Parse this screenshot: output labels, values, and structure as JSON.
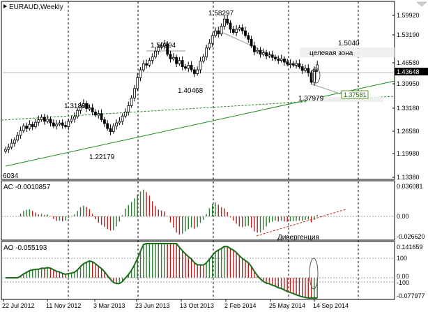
{
  "window": {
    "title": "EURAUD,Weekly"
  },
  "colors": {
    "candle_bull": "#ffffff",
    "candle_bear": "#000000",
    "candle_outline": "#000000",
    "hist_up": "#2e7d32",
    "hist_down": "#b22222",
    "ao_line": "#1a6e1a",
    "trendline": "#1e8a1e",
    "price_marker_bg": "#000000",
    "target_marker_border": "#5a9e2a"
  },
  "main_panel": {
    "price_labels": [
      "1.59920",
      "1.53190",
      "1.46580",
      "1.39950",
      "1.33180",
      "1.26580",
      "1.19980",
      "1.13380"
    ],
    "current_price": "1.43648",
    "target_price": "1.37581",
    "annotations": {
      "high": "1.58297",
      "peak2": "1.50294",
      "low2": "1.40468",
      "peak1": "1.31889",
      "low1": "1.22179",
      "low_last": "1.37979",
      "target": "1.5040",
      "target_zone": "целевая зона",
      "start_low": "6034"
    }
  },
  "ac_panel": {
    "title": "AC -0.0010857",
    "scale_labels": [
      "0.036081",
      "0.00",
      "-0.026620"
    ],
    "divergence_label": "Дивергенция"
  },
  "ao_panel": {
    "title": "AO -0.055193",
    "scale_labels": [
      "0.141659",
      "100",
      "0.00",
      "-100",
      "-0.077977"
    ]
  },
  "time_axis": {
    "labels": [
      "22 Jul 2012",
      "11 Nov 2012",
      "3 Mar 2013",
      "23 Jun 2013",
      "13 Oct 2013",
      "2 Feb 2014",
      "25 May 2014",
      "14 Sep 2014"
    ]
  },
  "chart_data": {
    "type": "candlestick",
    "symbol": "EURAUD",
    "timeframe": "Weekly",
    "ylim": [
      1.1338,
      1.5992
    ],
    "closes": [
      1.165,
      1.172,
      1.185,
      1.195,
      1.21,
      1.225,
      1.24,
      1.232,
      1.245,
      1.238,
      1.252,
      1.26,
      1.268,
      1.255,
      1.262,
      1.25,
      1.24,
      1.246,
      1.25,
      1.242,
      1.238,
      1.255,
      1.262,
      1.27,
      1.29,
      1.305,
      1.312,
      1.296,
      1.298,
      1.285,
      1.275,
      1.28,
      1.26,
      1.248,
      1.232,
      1.222,
      1.24,
      1.25,
      1.255,
      1.272,
      1.285,
      1.305,
      1.33,
      1.36,
      1.395,
      1.42,
      1.44,
      1.435,
      1.45,
      1.462,
      1.48,
      1.492,
      1.497,
      1.503,
      1.47,
      1.455,
      1.46,
      1.44,
      1.45,
      1.43,
      1.425,
      1.435,
      1.42,
      1.408,
      1.42,
      1.448,
      1.462,
      1.49,
      1.505,
      1.53,
      1.545,
      1.535,
      1.56,
      1.583,
      1.57,
      1.55,
      1.54,
      1.55,
      1.555,
      1.545,
      1.53,
      1.518,
      1.497,
      1.478,
      1.482,
      1.47,
      1.475,
      1.465,
      1.468,
      1.46,
      1.455,
      1.45,
      1.455,
      1.445,
      1.438,
      1.44,
      1.435,
      1.44,
      1.43,
      1.418,
      1.425,
      1.41,
      1.38,
      1.42,
      1.436
    ]
  }
}
